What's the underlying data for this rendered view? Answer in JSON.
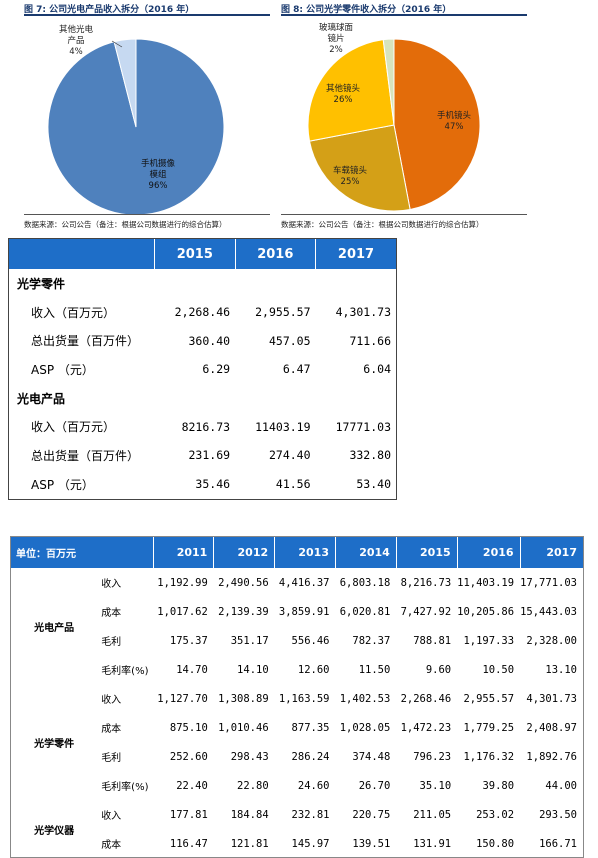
{
  "figure7": {
    "title": "图 7: 公司光电产品收入拆分（2016 年）",
    "source": "数据来源：公司公告（备注：根据公司数据进行的综合估算）",
    "labels": [
      {
        "line1": "其他光电",
        "line2": "产品",
        "pct": "4%"
      },
      {
        "line1": "手机摄像",
        "line2": "模组",
        "pct": "96%"
      }
    ]
  },
  "figure8": {
    "title": "图 8: 公司光学零件收入拆分（2016 年）",
    "source": "数据来源：公司公告（备注：根据公司数据进行的综合估算）",
    "labels": [
      {
        "line1": "玻璃球面",
        "line2": "镜片",
        "pct": "2%"
      },
      {
        "line1": "其他镜头",
        "pct": "26%"
      },
      {
        "line1": "手机镜头",
        "pct": "47%"
      },
      {
        "line1": "车载镜头",
        "pct": "25%"
      }
    ]
  },
  "chart_data": [
    {
      "type": "pie",
      "title": "图 7: 公司光电产品收入拆分（2016 年）",
      "categories": [
        "手机摄像模组",
        "其他光电产品"
      ],
      "values": [
        96,
        4
      ],
      "colors": [
        "#4f81bd",
        "#c6d9f1"
      ]
    },
    {
      "type": "pie",
      "title": "图 8: 公司光学零件收入拆分（2016 年）",
      "categories": [
        "手机镜头",
        "车载镜头",
        "其他镜头",
        "玻璃球面镜片"
      ],
      "values": [
        47,
        25,
        26,
        2
      ],
      "colors": [
        "#e36c0a",
        "#d4a017",
        "#ffc000",
        "#d7e4bd"
      ]
    }
  ],
  "table1": {
    "years": [
      "2015",
      "2016",
      "2017"
    ],
    "sections": [
      {
        "name": "光学零件",
        "rows": [
          {
            "label": "收入（百万元）",
            "values": [
              "2,268.46",
              "2,955.57",
              "4,301.73"
            ]
          },
          {
            "label": "总出货量（百万件）",
            "values": [
              "360.40",
              "457.05",
              "711.66"
            ]
          },
          {
            "label": "ASP （元）",
            "values": [
              "6.29",
              "6.47",
              "6.04"
            ]
          }
        ]
      },
      {
        "name": "光电产品",
        "rows": [
          {
            "label": "收入（百万元）",
            "values": [
              "8216.73",
              "11403.19",
              "17771.03"
            ]
          },
          {
            "label": "总出货量（百万件）",
            "values": [
              "231.69",
              "274.40",
              "332.80"
            ]
          },
          {
            "label": "ASP （元）",
            "values": [
              "35.46",
              "41.56",
              "53.40"
            ]
          }
        ]
      }
    ]
  },
  "table2": {
    "unit": "单位：百万元",
    "years": [
      "2011",
      "2012",
      "2013",
      "2014",
      "2015",
      "2016",
      "2017"
    ],
    "groups": [
      {
        "name": "光电产品",
        "rows": [
          {
            "metric": "收入",
            "values": [
              "1,192.99",
              "2,490.56",
              "4,416.37",
              "6,803.18",
              "8,216.73",
              "11,403.19",
              "17,771.03"
            ]
          },
          {
            "metric": "成本",
            "values": [
              "1,017.62",
              "2,139.39",
              "3,859.91",
              "6,020.81",
              "7,427.92",
              "10,205.86",
              "15,443.03"
            ]
          },
          {
            "metric": "毛利",
            "values": [
              "175.37",
              "351.17",
              "556.46",
              "782.37",
              "788.81",
              "1,197.33",
              "2,328.00"
            ]
          },
          {
            "metric": "毛利率(%)",
            "values": [
              "14.70",
              "14.10",
              "12.60",
              "11.50",
              "9.60",
              "10.50",
              "13.10"
            ]
          }
        ]
      },
      {
        "name": "光学零件",
        "rows": [
          {
            "metric": "收入",
            "values": [
              "1,127.70",
              "1,308.89",
              "1,163.59",
              "1,402.53",
              "2,268.46",
              "2,955.57",
              "4,301.73"
            ]
          },
          {
            "metric": "成本",
            "values": [
              "875.10",
              "1,010.46",
              "877.35",
              "1,028.05",
              "1,472.23",
              "1,779.25",
              "2,408.97"
            ]
          },
          {
            "metric": "毛利",
            "values": [
              "252.60",
              "298.43",
              "286.24",
              "374.48",
              "796.23",
              "1,176.32",
              "1,892.76"
            ]
          },
          {
            "metric": "毛利率(%)",
            "values": [
              "22.40",
              "22.80",
              "24.60",
              "26.70",
              "35.10",
              "39.80",
              "44.00"
            ]
          }
        ]
      },
      {
        "name": "光学仪器",
        "rows": [
          {
            "metric": "收入",
            "values": [
              "177.81",
              "184.84",
              "232.81",
              "220.75",
              "211.05",
              "253.02",
              "293.50"
            ]
          },
          {
            "metric": "成本",
            "values": [
              "116.47",
              "121.81",
              "145.97",
              "139.51",
              "131.91",
              "150.80",
              "166.71"
            ]
          }
        ]
      }
    ]
  }
}
